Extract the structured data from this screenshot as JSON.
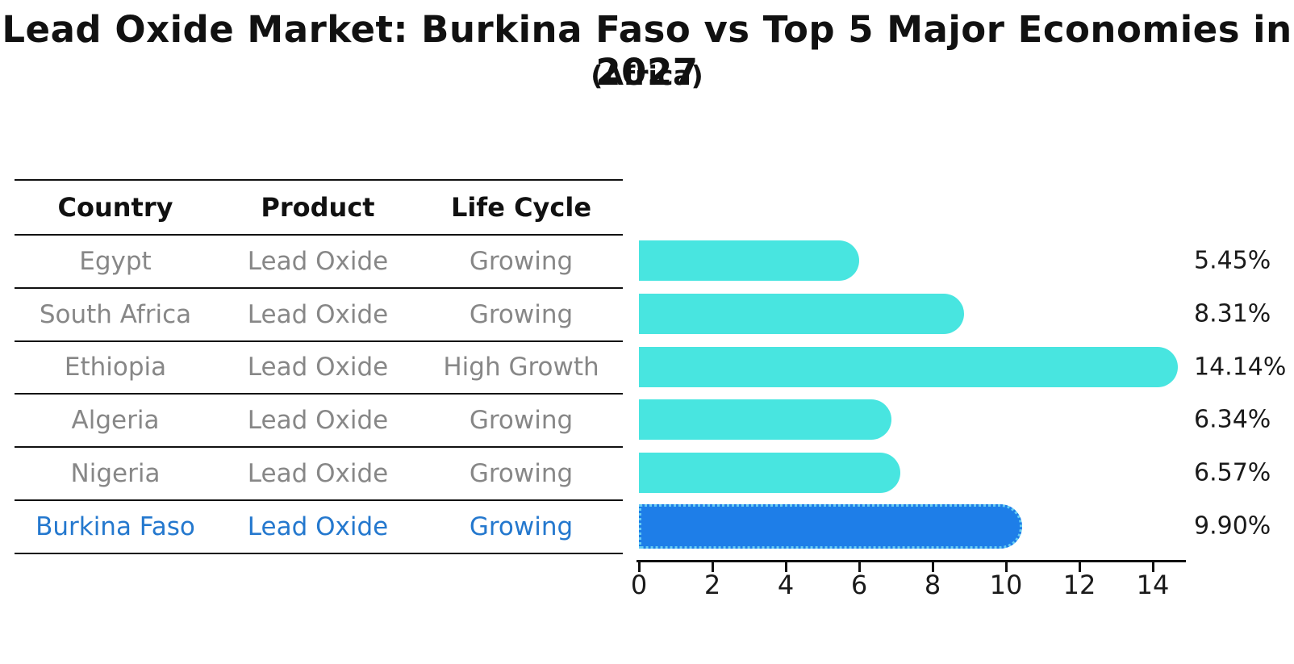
{
  "title": "Lead Oxide Market: Burkina Faso vs Top 5 Major Economies in 2027",
  "subtitle": "(Africa)",
  "table": {
    "headers": [
      "Country",
      "Product",
      "Life Cycle"
    ],
    "rows": [
      {
        "country": "Egypt",
        "product": "Lead Oxide",
        "life_cycle": "Growing",
        "highlight": false
      },
      {
        "country": "South Africa",
        "product": "Lead Oxide",
        "life_cycle": "Growing",
        "highlight": false
      },
      {
        "country": "Ethiopia",
        "product": "Lead Oxide",
        "life_cycle": "High Growth",
        "highlight": false
      },
      {
        "country": "Algeria",
        "product": "Lead Oxide",
        "life_cycle": "Growing",
        "highlight": false
      },
      {
        "country": "Nigeria",
        "product": "Lead Oxide",
        "life_cycle": "Growing",
        "highlight": false
      },
      {
        "country": "Burkina Faso",
        "product": "Lead Oxide",
        "life_cycle": "Growing",
        "highlight": true
      }
    ]
  },
  "chart_data": {
    "type": "bar",
    "orientation": "horizontal",
    "categories": [
      "Egypt",
      "South Africa",
      "Ethiopia",
      "Algeria",
      "Nigeria",
      "Burkina Faso"
    ],
    "values": [
      5.45,
      8.31,
      14.14,
      6.34,
      6.57,
      9.9
    ],
    "value_labels": [
      "5.45%",
      "8.31%",
      "14.14%",
      "6.34%",
      "6.57%",
      "9.90%"
    ],
    "highlight_index": 5,
    "x_ticks": [
      0,
      2,
      4,
      6,
      8,
      10,
      12,
      14
    ],
    "xlim": [
      0,
      14.85
    ],
    "xlabel": "",
    "ylabel": "",
    "grid": false,
    "legend": false,
    "colors": {
      "bar": "#48E5E0",
      "highlight": "#1E7EE8",
      "highlight_edge": "#66CCF2",
      "row_text": "#878787",
      "highlight_text": "#2478CE",
      "axis_line": "#111111"
    }
  }
}
